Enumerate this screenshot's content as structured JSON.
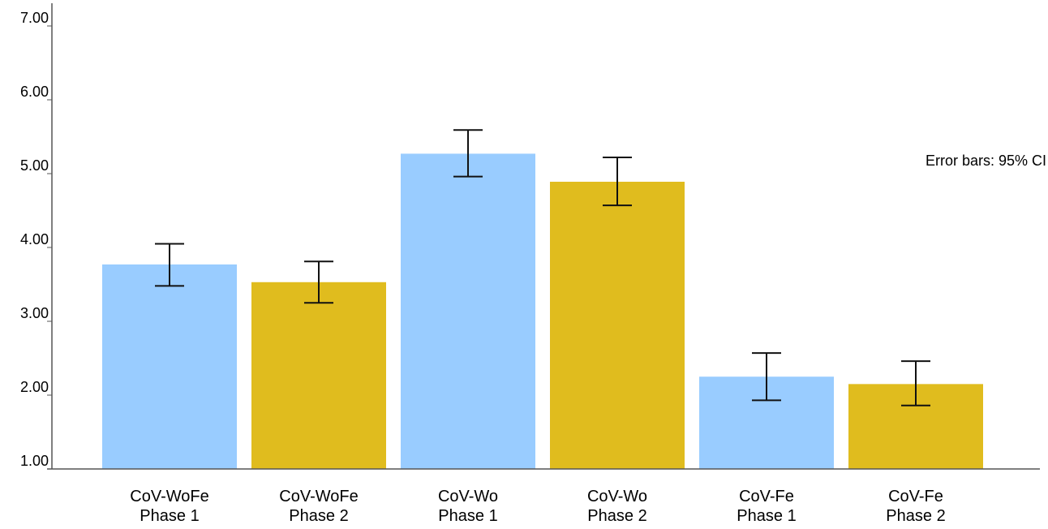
{
  "chart_data": {
    "type": "bar",
    "title": "",
    "xlabel": "",
    "ylabel": "",
    "ylim": [
      1.0,
      7.0
    ],
    "yticks": [
      "1.00",
      "2.00",
      "3.00",
      "4.00",
      "5.00",
      "6.00",
      "7.00"
    ],
    "categories": [
      [
        "CoV-WoFe",
        "Phase 1"
      ],
      [
        "CoV-WoFe",
        "Phase 2"
      ],
      [
        "CoV-Wo",
        "Phase 1"
      ],
      [
        "CoV-Wo",
        "Phase 2"
      ],
      [
        "CoV-Fe",
        "Phase 1"
      ],
      [
        "CoV-Fe",
        "Phase 2"
      ]
    ],
    "values": [
      3.77,
      3.53,
      5.27,
      4.89,
      2.25,
      2.15
    ],
    "ci_lower": [
      3.48,
      3.25,
      4.96,
      4.57,
      1.93,
      1.86
    ],
    "ci_upper": [
      4.05,
      3.81,
      5.59,
      5.22,
      2.57,
      2.46
    ],
    "bar_colors": [
      "#99ccff",
      "#e0bc1e",
      "#99ccff",
      "#e0bc1e",
      "#99ccff",
      "#e0bc1e"
    ],
    "annotation": "Error bars: 95% CI",
    "grid": false
  }
}
